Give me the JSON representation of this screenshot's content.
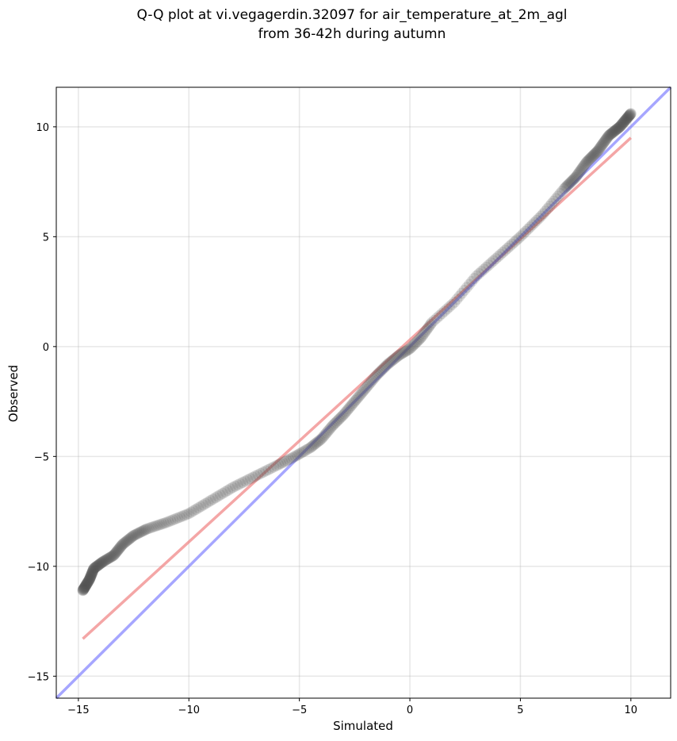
{
  "chart_data": {
    "type": "scatter",
    "title": "Q-Q plot at vi.vegagerdin.32097 for air_temperature_at_2m_agl",
    "subtitle": "from 36-42h during autumn",
    "xlabel": "Simulated",
    "ylabel": "Observed",
    "xlim": [
      -16.0,
      11.8
    ],
    "ylim": [
      -16.0,
      11.8
    ],
    "xticks": [
      -15,
      -10,
      -5,
      0,
      5,
      10
    ],
    "yticks": [
      -15,
      -10,
      -5,
      0,
      5,
      10
    ],
    "xtick_labels": [
      "−15",
      "−10",
      "−5",
      "0",
      "5",
      "10"
    ],
    "ytick_labels": [
      "−15",
      "−10",
      "−5",
      "0",
      "5",
      "10"
    ],
    "grid": true,
    "colors": {
      "points": "#555555",
      "fit_line": "#f08080",
      "identity_line": "#8080ff"
    },
    "fit_line": {
      "x": [
        -14.8,
        10.0
      ],
      "y": [
        -13.3,
        9.5
      ]
    },
    "identity_line": {
      "x": [
        -16.0,
        11.8
      ],
      "y": [
        -16.0,
        11.8
      ]
    },
    "quantile_anchors": {
      "x": [
        -14.8,
        -14.5,
        -14.3,
        -13.9,
        -13.4,
        -13.0,
        -12.5,
        -11.9,
        -11.0,
        -10.0,
        -9.0,
        -8.0,
        -7.0,
        -6.0,
        -5.2,
        -4.5,
        -4.0,
        -3.5,
        -3.0,
        -2.5,
        -2.0,
        -1.5,
        -1.0,
        -0.5,
        0.0,
        0.5,
        1.0,
        2.0,
        3.0,
        4.0,
        5.0,
        6.0,
        7.0,
        7.5,
        8.0,
        8.5,
        9.0,
        9.5,
        10.0
      ],
      "y": [
        -11.1,
        -10.6,
        -10.1,
        -9.8,
        -9.5,
        -9.0,
        -8.6,
        -8.3,
        -8.0,
        -7.6,
        -7.0,
        -6.4,
        -5.9,
        -5.4,
        -5.0,
        -4.6,
        -4.2,
        -3.6,
        -3.1,
        -2.5,
        -1.9,
        -1.3,
        -0.8,
        -0.4,
        -0.1,
        0.4,
        1.1,
        2.0,
        3.2,
        4.1,
        5.0,
        6.0,
        7.2,
        7.7,
        8.4,
        8.9,
        9.6,
        10.0,
        10.6
      ]
    },
    "point_count": 420
  }
}
